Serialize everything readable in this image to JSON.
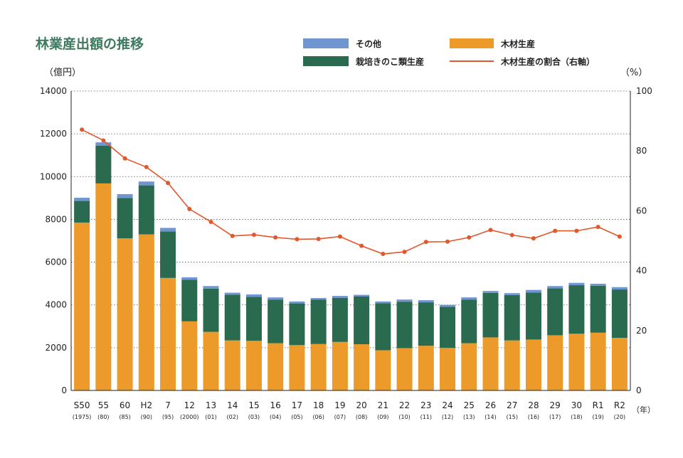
{
  "chart_data": {
    "type": "bar",
    "title": "林業産出額の推移",
    "ylabel_left": "（億円）",
    "ylabel_right": "（%）",
    "xunit": "（年）",
    "ylim_left": [
      0,
      14000
    ],
    "ylim_right": [
      0,
      100
    ],
    "yticks_left": [
      "0",
      "2000",
      "4000",
      "6000",
      "8000",
      "10000",
      "12000",
      "14000"
    ],
    "yticks_right": [
      "0",
      "20",
      "40",
      "60",
      "80",
      "100"
    ],
    "grid": "horizontal-dotted",
    "legend_position": "top-right",
    "categories": [
      "S50",
      "55",
      "60",
      "H2",
      "7",
      "12",
      "13",
      "14",
      "15",
      "16",
      "17",
      "18",
      "19",
      "20",
      "21",
      "22",
      "23",
      "24",
      "25",
      "26",
      "27",
      "28",
      "29",
      "30",
      "R1",
      "R2"
    ],
    "sublabels": [
      "(1975)",
      "(80)",
      "(85)",
      "(90)",
      "(95)",
      "(2000)",
      "(01)",
      "(02)",
      "(03)",
      "(04)",
      "(05)",
      "(06)",
      "(07)",
      "(08)",
      "(09)",
      "(10)",
      "(11)",
      "(12)",
      "(13)",
      "(14)",
      "(15)",
      "(16)",
      "(17)",
      "(18)",
      "(19)",
      "(20)"
    ],
    "series": [
      {
        "name": "木材生産",
        "kind": "bar",
        "color": "#ec9a2a",
        "values": [
          7850,
          9680,
          7110,
          7300,
          5260,
          3230,
          2740,
          2340,
          2320,
          2210,
          2120,
          2170,
          2270,
          2160,
          1880,
          1980,
          2090,
          1990,
          2210,
          2480,
          2340,
          2380,
          2580,
          2650,
          2700,
          2460
        ]
      },
      {
        "name": "栽培きのこ類生産",
        "kind": "bar",
        "color": "#2a6a4e",
        "values": [
          1010,
          1770,
          1890,
          2290,
          2170,
          1950,
          2020,
          2140,
          2060,
          2040,
          1950,
          2070,
          2060,
          2230,
          2200,
          2170,
          2030,
          1920,
          2040,
          2080,
          2120,
          2200,
          2190,
          2270,
          2190,
          2260
        ]
      },
      {
        "name": "その他",
        "kind": "bar",
        "color": "#6f96d1",
        "values": [
          150,
          150,
          180,
          180,
          170,
          110,
          120,
          90,
          110,
          100,
          90,
          80,
          90,
          80,
          80,
          100,
          100,
          90,
          100,
          90,
          90,
          120,
          110,
          110,
          100,
          110
        ]
      },
      {
        "name": "木材生産の割合（右軸）",
        "kind": "line",
        "axis": "right",
        "color": "#e2572b",
        "values": [
          87.1,
          83.5,
          77.5,
          74.6,
          69.3,
          60.6,
          56.3,
          51.6,
          52.0,
          51.1,
          50.5,
          50.6,
          51.4,
          48.3,
          45.6,
          46.3,
          49.6,
          49.7,
          51.1,
          53.6,
          51.9,
          50.8,
          53.3,
          53.3,
          54.6,
          51.4
        ]
      }
    ]
  }
}
